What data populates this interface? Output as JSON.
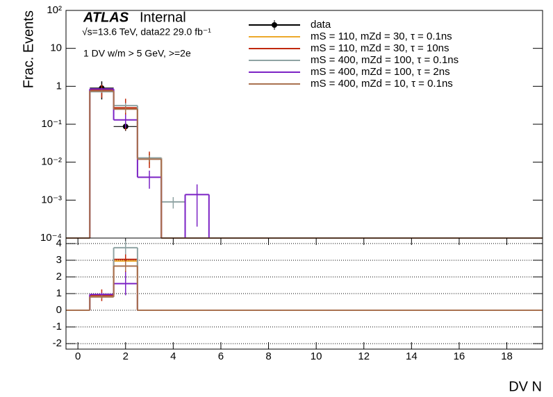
{
  "chart_data": [
    {
      "type": "histogram",
      "log_y": true,
      "ylabel": "Frac. Events",
      "legend": "top-right",
      "annotations": [
        "ATLAS",
        "Internal",
        "√s=13.6 TeV, data22 29.0 fb⁻¹",
        "1 DV w/m > 5 GeV, >=2e"
      ],
      "xlim": [
        -0.5,
        19.5
      ],
      "ylim": [
        0.0001,
        100
      ],
      "yticks": [
        {
          "value": 100,
          "label": "10²"
        },
        10,
        1,
        {
          "value": 0.1,
          "label": "10⁻¹"
        },
        {
          "value": 0.01,
          "label": "10⁻²"
        },
        {
          "value": 0.001,
          "label": "10⁻³"
        },
        {
          "value": 0.0001,
          "label": "10⁻⁴"
        }
      ],
      "bins": [
        -0.5,
        0.5,
        1.5,
        2.5,
        3.5,
        4.5,
        5.5,
        6.5,
        7.5,
        8.5,
        9.5,
        10.5,
        11.5,
        12.5,
        13.5,
        14.5,
        15.5,
        16.5,
        17.5,
        18.5,
        19.5
      ],
      "series": [
        {
          "name": "data",
          "color": "#000000",
          "style": "points",
          "values": [
            null,
            0.9,
            0.087,
            null,
            null,
            null,
            null,
            null,
            null,
            null,
            null,
            null,
            null,
            null,
            null,
            null,
            null,
            null,
            null,
            null
          ],
          "errors": [
            null,
            0.45,
            0.02,
            null,
            null,
            null,
            null,
            null,
            null,
            null,
            null,
            null,
            null,
            null,
            null,
            null,
            null,
            null,
            null,
            null
          ]
        },
        {
          "name": "mS = 110, mZd = 30, τ = 0.1ns",
          "color": "#eca82a",
          "style": "step",
          "values": [
            0,
            0.75,
            0.26,
            0.013,
            0,
            0,
            0,
            0,
            0,
            0,
            0,
            0,
            0,
            0,
            0,
            0,
            0,
            0,
            0,
            0
          ],
          "errors": [
            null,
            0.05,
            0.08,
            0.004,
            null,
            null,
            null,
            null,
            null,
            null,
            null,
            null,
            null,
            null,
            null,
            null,
            null,
            null,
            null,
            null
          ]
        },
        {
          "name": "mS = 110, mZd = 30, τ = 10ns",
          "color": "#c0280a",
          "style": "step",
          "values": [
            0,
            0.8,
            0.27,
            0.013,
            0,
            0,
            0,
            0,
            0,
            0,
            0,
            0,
            0,
            0,
            0,
            0,
            0,
            0,
            0,
            0
          ],
          "errors": [
            null,
            0.3,
            0.2,
            0.006,
            null,
            null,
            null,
            null,
            null,
            null,
            null,
            null,
            null,
            null,
            null,
            null,
            null,
            null,
            null,
            null
          ]
        },
        {
          "name": "mS = 400, mZd = 100, τ = 0.1ns",
          "color": "#8fa3a3",
          "style": "step",
          "values": [
            0,
            0.72,
            0.31,
            0.013,
            0.0009,
            0,
            0,
            0,
            0,
            0,
            0,
            0,
            0,
            0,
            0,
            0,
            0,
            0,
            0,
            0
          ],
          "errors": [
            null,
            0.05,
            0.05,
            0.002,
            0.0003,
            null,
            null,
            null,
            null,
            null,
            null,
            null,
            null,
            null,
            null,
            null,
            null,
            null,
            null,
            null
          ]
        },
        {
          "name": "mS = 400, mZd = 100, τ = 2ns",
          "color": "#7b22c4",
          "style": "step",
          "values": [
            0,
            0.85,
            0.13,
            0.004,
            0,
            0.0014,
            0,
            0,
            0,
            0,
            0,
            0,
            0,
            0,
            0,
            0,
            0,
            0,
            0,
            0
          ],
          "errors": [
            null,
            0.05,
            0.05,
            0.002,
            null,
            0.0012,
            null,
            null,
            null,
            null,
            null,
            null,
            null,
            null,
            null,
            null,
            null,
            null,
            null,
            null
          ]
        },
        {
          "name": "mS = 400, mZd = 10, τ = 0.1ns",
          "color": "#a9714f",
          "style": "step",
          "values": [
            0,
            0.75,
            0.25,
            0.012,
            0,
            0,
            0,
            0,
            0,
            0,
            0,
            0,
            0,
            0,
            0,
            0,
            0,
            0,
            0,
            0
          ],
          "errors": [
            null,
            0.05,
            0.05,
            0.002,
            null,
            null,
            null,
            null,
            null,
            null,
            null,
            null,
            null,
            null,
            null,
            null,
            null,
            null,
            null,
            null
          ]
        }
      ]
    },
    {
      "type": "histogram",
      "log_y": false,
      "grid": true,
      "xlabel": "DV N",
      "xlim": [
        -0.5,
        19.5
      ],
      "ylim": [
        -2.33,
        4.33
      ],
      "xticks": [
        0,
        2,
        4,
        6,
        8,
        10,
        12,
        14,
        16,
        18
      ],
      "yticks": [
        -2,
        -1,
        0,
        1,
        2,
        3,
        4
      ],
      "bins": [
        -0.5,
        0.5,
        1.5,
        2.5,
        3.5,
        4.5,
        5.5,
        6.5,
        7.5,
        8.5,
        9.5,
        10.5,
        11.5,
        12.5,
        13.5,
        14.5,
        15.5,
        16.5,
        17.5,
        18.5,
        19.5
      ],
      "series": [
        {
          "color": "#eca82a",
          "style": "step",
          "values": [
            0,
            0.85,
            2.95,
            0,
            0,
            0,
            0,
            0,
            0,
            0,
            0,
            0,
            0,
            0,
            0,
            0,
            0,
            0,
            0,
            0
          ],
          "errors": [
            null,
            0.1,
            0.2,
            null,
            null,
            null,
            null,
            null,
            null,
            null,
            null,
            null,
            null,
            null,
            null,
            null,
            null,
            null,
            null,
            null
          ]
        },
        {
          "color": "#c0280a",
          "style": "step",
          "values": [
            0,
            0.9,
            3.05,
            0,
            0,
            0,
            0,
            0,
            0,
            0,
            0,
            0,
            0,
            0,
            0,
            0,
            0,
            0,
            0,
            0
          ],
          "errors": [
            null,
            0.35,
            0.9,
            null,
            null,
            null,
            null,
            null,
            null,
            null,
            null,
            null,
            null,
            null,
            null,
            null,
            null,
            null,
            null,
            null
          ]
        },
        {
          "color": "#8fa3a3",
          "style": "step",
          "values": [
            0,
            0.8,
            3.75,
            0,
            0,
            0,
            0,
            0,
            0,
            0,
            0,
            0,
            0,
            0,
            0,
            0,
            0,
            0,
            0,
            0
          ],
          "errors": [
            null,
            0.1,
            0.4,
            null,
            null,
            null,
            null,
            null,
            null,
            null,
            null,
            null,
            null,
            null,
            null,
            null,
            null,
            null,
            null,
            null
          ]
        },
        {
          "color": "#7b22c4",
          "style": "step",
          "values": [
            0,
            0.95,
            1.6,
            0,
            0,
            0,
            0,
            0,
            0,
            0,
            0,
            0,
            0,
            0,
            0,
            0,
            0,
            0,
            0,
            0
          ],
          "errors": [
            null,
            0.1,
            0.7,
            null,
            null,
            null,
            null,
            null,
            null,
            null,
            null,
            null,
            null,
            null,
            null,
            null,
            null,
            null,
            null,
            null
          ]
        },
        {
          "color": "#a9714f",
          "style": "step",
          "values": [
            0,
            0.8,
            2.65,
            0,
            0,
            0,
            0,
            0,
            0,
            0,
            0,
            0,
            0,
            0,
            0,
            0,
            0,
            0,
            0,
            0
          ],
          "errors": [
            null,
            0.1,
            0.3,
            null,
            null,
            null,
            null,
            null,
            null,
            null,
            null,
            null,
            null,
            null,
            null,
            null,
            null,
            null,
            null,
            null
          ]
        }
      ]
    }
  ]
}
